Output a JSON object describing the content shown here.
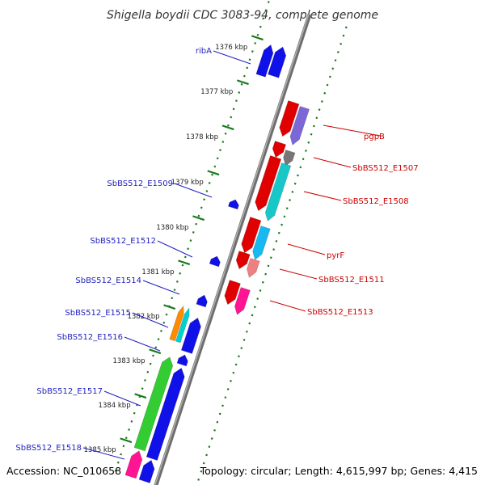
{
  "title": "Shigella boydii CDC 3083-94, complete genome",
  "accession": "Accession: NC_010658",
  "topology": "Topology: circular; Length: 4,615,997 bp; Genes: 4,415",
  "colors": {
    "backbone": "#888888",
    "tick": "#1a7a1a",
    "label_left": "#1f1fbf",
    "label_right": "#cc0000"
  },
  "ticks": [
    {
      "kbp": 1376,
      "label": "1376 kbp"
    },
    {
      "kbp": 1377,
      "label": "1377 kbp"
    },
    {
      "kbp": 1378,
      "label": "1378 kbp"
    },
    {
      "kbp": 1379,
      "label": "1379 kbp"
    },
    {
      "kbp": 1380,
      "label": "1380 kbp"
    },
    {
      "kbp": 1381,
      "label": "1381 kbp"
    },
    {
      "kbp": 1382,
      "label": "1382 kbp"
    },
    {
      "kbp": 1383,
      "label": "1383 kbp"
    },
    {
      "kbp": 1384,
      "label": "1384 kbp"
    },
    {
      "kbp": 1385,
      "label": "1385 kbp"
    }
  ],
  "left_labels": [
    {
      "text": "ribA"
    },
    {
      "text": "SbBS512_E1509"
    },
    {
      "text": "SbBS512_E1512"
    },
    {
      "text": "SbBS512_E1514"
    },
    {
      "text": "SbBS512_E1515"
    },
    {
      "text": "SbBS512_E1516"
    },
    {
      "text": "SbBS512_E1517"
    },
    {
      "text": "SbBS512_E1518"
    }
  ],
  "right_labels": [
    {
      "text": "pgpB"
    },
    {
      "text": "SbBS512_E1507"
    },
    {
      "text": "SbBS512_E1508"
    },
    {
      "text": "pyrF"
    },
    {
      "text": "SbBS512_E1511"
    },
    {
      "text": "SbBS512_E1513"
    }
  ]
}
